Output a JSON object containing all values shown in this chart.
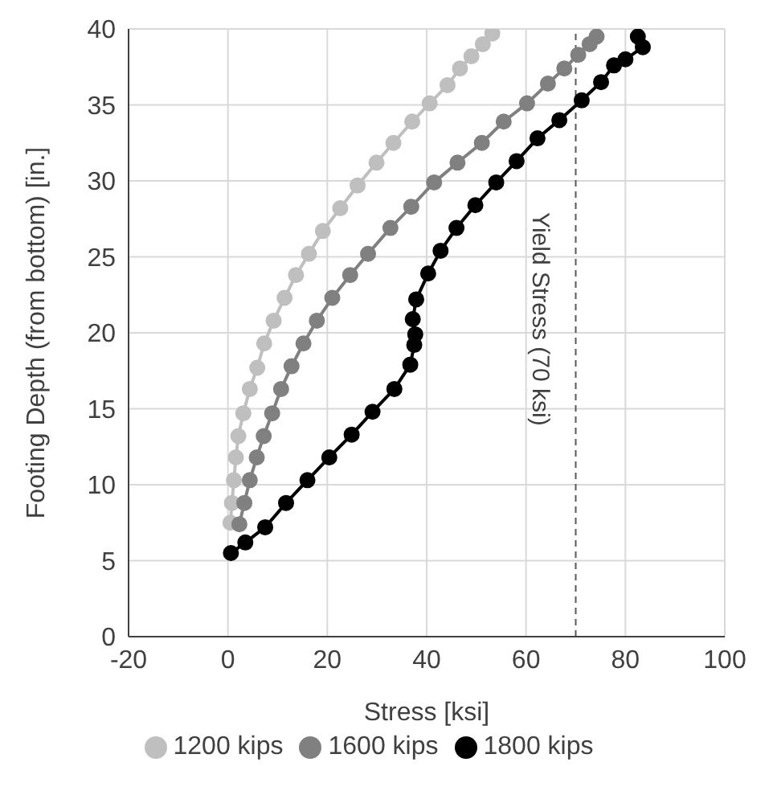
{
  "chart_data": {
    "type": "line",
    "xlabel": "Stress [ksi]",
    "ylabel": "Footing Depth (from bottom) [in.]",
    "xlim": [
      -20,
      100
    ],
    "xticks": [
      -20,
      0,
      20,
      40,
      60,
      80,
      100
    ],
    "ylim": [
      0,
      40
    ],
    "yticks": [
      0,
      5,
      10,
      15,
      20,
      25,
      30,
      35,
      40
    ],
    "grid": true,
    "legend": "bottom",
    "marker": "circle",
    "line_style": "solid",
    "series": [
      {
        "name": "1200 kips",
        "color": "#bfbfbf",
        "x": [
          0.5,
          0.8,
          1.2,
          1.6,
          2.1,
          3.1,
          4.4,
          5.9,
          7.3,
          9.2,
          11.4,
          13.7,
          16.3,
          19.1,
          22.6,
          26.1,
          29.9,
          33.3,
          37.1,
          40.6,
          44.2,
          46.7,
          49,
          51.3,
          53.2
        ],
        "values": [
          7.5,
          8.8,
          10.3,
          11.8,
          13.2,
          14.7,
          16.3,
          17.7,
          19.3,
          20.8,
          22.3,
          23.8,
          25.2,
          26.7,
          28.2,
          29.7,
          31.2,
          32.5,
          33.9,
          35.1,
          36.3,
          37.4,
          38.2,
          39,
          39.7
        ]
      },
      {
        "name": "1600 kips",
        "color": "#808080",
        "x": [
          2.3,
          3.3,
          4.4,
          5.8,
          7.2,
          8.9,
          10.7,
          12.8,
          15.2,
          17.9,
          21,
          24.6,
          28.2,
          32.7,
          36.9,
          41.5,
          46.2,
          51.1,
          55.5,
          60.2,
          64.4,
          67.7,
          70.5,
          72.8,
          74.2
        ],
        "values": [
          7.4,
          8.8,
          10.3,
          11.8,
          13.2,
          14.7,
          16.3,
          17.8,
          19.3,
          20.8,
          22.3,
          23.8,
          25.2,
          26.9,
          28.3,
          29.9,
          31.2,
          32.5,
          33.9,
          35.1,
          36.4,
          37.4,
          38.3,
          39,
          39.5
        ]
      },
      {
        "name": "1800 kips",
        "color": "#000000",
        "x": [
          0.6,
          3.5,
          7.5,
          11.7,
          16,
          20.4,
          24.9,
          29.1,
          33.5,
          36.7,
          37.5,
          37.7,
          37.2,
          37.9,
          40.3,
          42.8,
          46,
          49.8,
          54,
          58.1,
          62.3,
          66.7,
          71.2,
          75.1,
          77.7,
          80,
          83.5,
          82.5
        ],
        "values": [
          5.5,
          6.2,
          7.2,
          8.8,
          10.3,
          11.8,
          13.3,
          14.8,
          16.3,
          17.9,
          19.2,
          19.9,
          20.9,
          22.2,
          23.9,
          25.4,
          26.9,
          28.4,
          29.9,
          31.3,
          32.8,
          34,
          35.3,
          36.5,
          37.6,
          38,
          38.8,
          39.5
        ]
      }
    ],
    "ref_lines": [
      {
        "axis": "x",
        "value": 70,
        "label": "Yield Stress (70 ksi)",
        "color": "#595959",
        "line_style": "dashed"
      }
    ]
  }
}
